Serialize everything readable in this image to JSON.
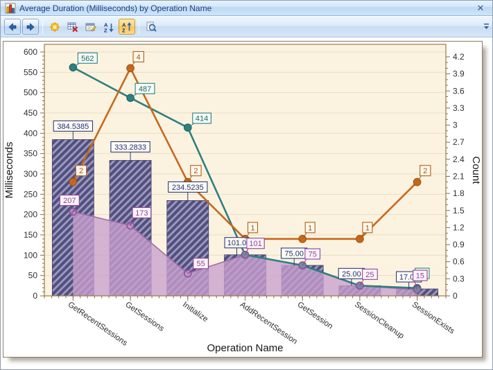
{
  "window": {
    "title": "Average Duration (Milliseconds) by Operation Name",
    "icon": "bar-chart-icon",
    "close_glyph": "✕"
  },
  "toolbar": {
    "buttons": [
      {
        "id": "back",
        "icon": "arrow-left-icon"
      },
      {
        "id": "forward",
        "icon": "arrow-right-icon"
      },
      {
        "id": "appearance",
        "icon": "sunburst-icon"
      },
      {
        "id": "remove-table",
        "icon": "table-delete-icon"
      },
      {
        "id": "properties",
        "icon": "properties-icon"
      },
      {
        "id": "sort-descending",
        "icon": "sort-az-descending-icon"
      },
      {
        "id": "sort-ascending",
        "icon": "sort-az-ascending-icon",
        "active": true
      },
      {
        "id": "print-preview",
        "icon": "print-preview-icon"
      }
    ],
    "overflow_icon": "toolbar-overflow-icon"
  },
  "chart_data": {
    "type": "combo",
    "categories": [
      "GetRecentSessions",
      "GetSessions",
      "Initialize",
      "AddRecentSession",
      "GetSession",
      "SessionCleanup",
      "SessionExists"
    ],
    "x_axis": {
      "title": "Operation Name"
    },
    "y_axis_left": {
      "title": "Milliseconds",
      "min": 0,
      "max": 600,
      "step": 50
    },
    "y_axis_right": {
      "title": "Count",
      "min": 0,
      "max": 4.2,
      "step": 0.3
    },
    "series": [
      {
        "name": "average-duration-bars",
        "type": "bar",
        "axis": "left",
        "color": "#514f7e",
        "values": [
          384.5385,
          333.2833,
          234.5235,
          101.0,
          75,
          25,
          17
        ],
        "point_labels": [
          "384.5385",
          "333.2833",
          "234.5235",
          "101.0",
          "75.00",
          "25.00",
          "17.00"
        ]
      },
      {
        "name": "min-duration-area",
        "type": "area",
        "axis": "left",
        "color": "#c89fce",
        "values": [
          207,
          173,
          55,
          101,
          75,
          25,
          15
        ],
        "point_labels": [
          "207",
          "173",
          "55",
          "101",
          "75",
          "25",
          "15"
        ]
      },
      {
        "name": "max-duration-line",
        "type": "line",
        "axis": "left",
        "color": "#2e7f80",
        "values": [
          562,
          487,
          414,
          101,
          75,
          25,
          19
        ],
        "point_labels": [
          "562",
          "487",
          "414",
          "",
          "",
          "",
          ""
        ]
      },
      {
        "name": "count-line",
        "type": "line",
        "axis": "right",
        "color": "#c7681c",
        "values": [
          2,
          4,
          2,
          1,
          1,
          1,
          2
        ],
        "point_labels": [
          "2",
          "4",
          "2",
          "1",
          "1",
          "1",
          "2"
        ]
      }
    ],
    "plot": {
      "background": "#fbf3e0",
      "grid_color": "#e9ddc4",
      "border_color": "#9b7a4a"
    },
    "label_styles": {
      "bar": {
        "stroke": "#2f3a7d",
        "text": "#23307a",
        "fill": "#fdfcf3"
      },
      "area": {
        "stroke": "#8d4296",
        "text": "#8d4296",
        "fill": "#fbf4fb"
      },
      "line": {
        "stroke": "#2e7f80",
        "text": "#17696b",
        "fill": "#f6fbf6"
      },
      "count": {
        "stroke": "#b05c16",
        "text": "#a8540f",
        "fill": "#fdf7ec"
      }
    }
  }
}
